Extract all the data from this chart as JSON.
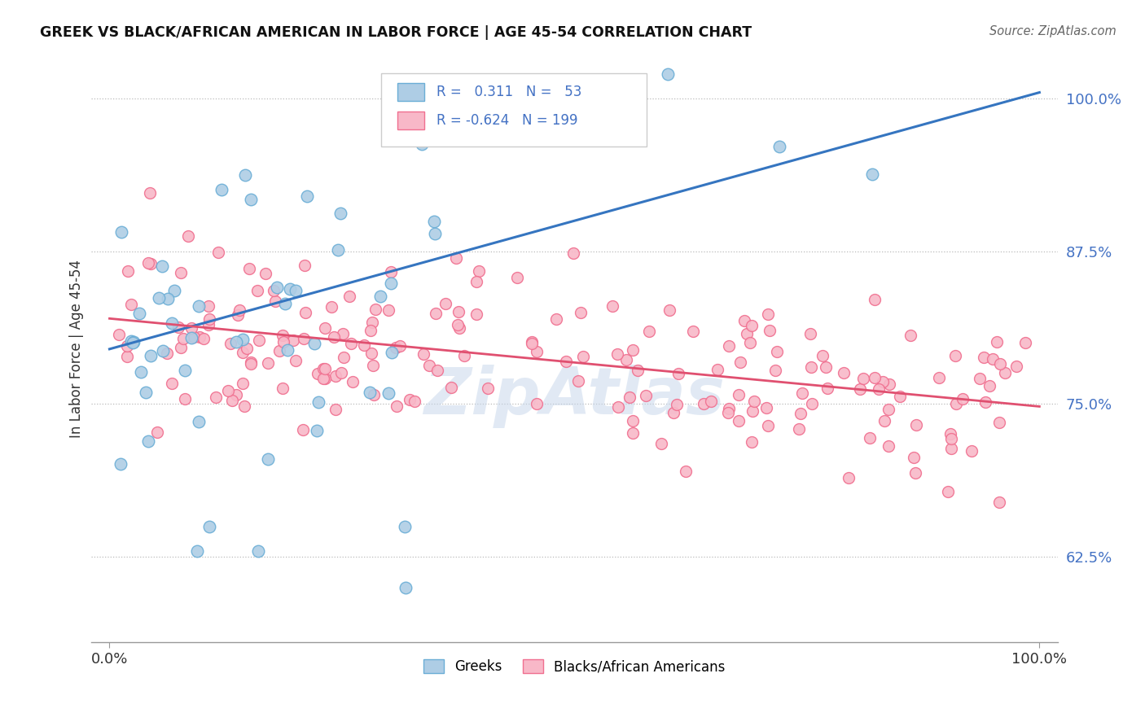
{
  "title": "GREEK VS BLACK/AFRICAN AMERICAN IN LABOR FORCE | AGE 45-54 CORRELATION CHART",
  "source": "Source: ZipAtlas.com",
  "ylabel": "In Labor Force | Age 45-54",
  "xlim": [
    -0.02,
    1.02
  ],
  "ylim": [
    0.555,
    1.035
  ],
  "yticks": [
    0.625,
    0.75,
    0.875,
    1.0
  ],
  "ytick_labels": [
    "62.5%",
    "75.0%",
    "87.5%",
    "100.0%"
  ],
  "xticks": [
    0.0,
    1.0
  ],
  "xtick_labels": [
    "0.0%",
    "100.0%"
  ],
  "greek_fill_color": "#aecde5",
  "greek_edge_color": "#6baed6",
  "black_fill_color": "#f8b8c8",
  "black_edge_color": "#f07090",
  "greek_R": 0.311,
  "greek_N": 53,
  "black_R": -0.624,
  "black_N": 199,
  "greek_line_color": "#3575c0",
  "black_line_color": "#e05070",
  "legend_label_greek": "Greeks",
  "legend_label_black": "Blacks/African Americans",
  "watermark": "ZipAtlas",
  "background_color": "#ffffff",
  "tick_label_color": "#4472c4",
  "greek_line_x0": 0.0,
  "greek_line_y0": 0.795,
  "greek_line_x1": 1.0,
  "greek_line_y1": 1.005,
  "black_line_x0": 0.0,
  "black_line_y0": 0.82,
  "black_line_x1": 1.0,
  "black_line_y1": 0.748
}
